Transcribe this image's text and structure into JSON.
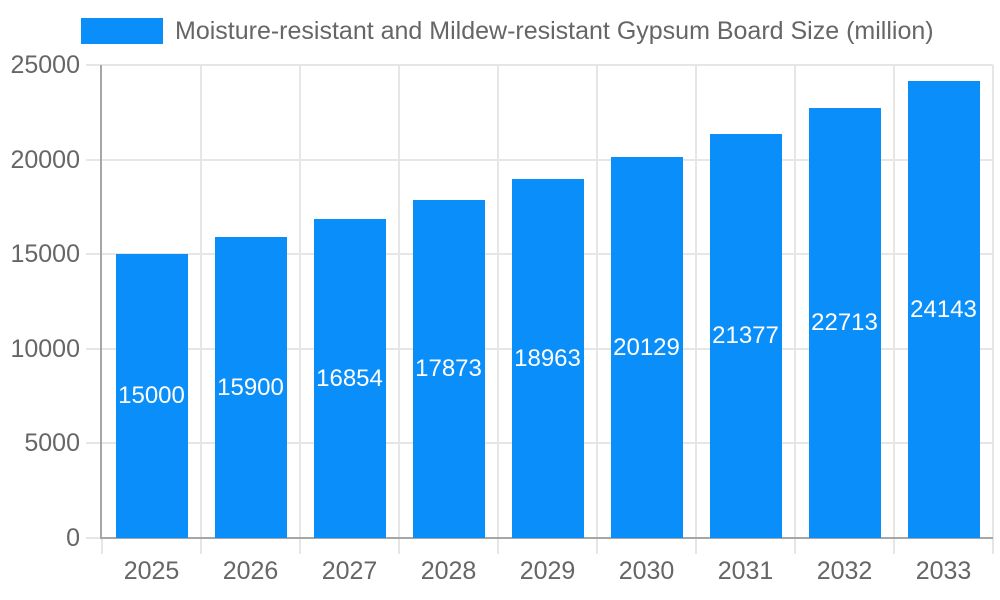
{
  "chart_data": {
    "type": "bar",
    "title": "Moisture-resistant and Mildew-resistant Gypsum Board Size (million)",
    "legend_entries": [
      "Moisture-resistant and Mildew-resistant Gypsum Board Size (million)"
    ],
    "legend_position": "top",
    "categories": [
      "2025",
      "2026",
      "2027",
      "2028",
      "2029",
      "2030",
      "2031",
      "2032",
      "2033"
    ],
    "values": [
      15000,
      15900,
      16854,
      17873,
      18963,
      20129,
      21377,
      22713,
      24143
    ],
    "bar_value_labels": [
      "15000",
      "15900",
      "16854",
      "17873",
      "18963",
      "20129",
      "21377",
      "22713",
      "24143"
    ],
    "xlabel": "",
    "ylabel": "",
    "ylim": [
      0,
      25000
    ],
    "yticks": [
      0,
      5000,
      10000,
      15000,
      20000,
      25000
    ],
    "grid": true
  },
  "colors": {
    "bar": "#0a8ef9",
    "bar_label": "#ffffff",
    "grid": "#e6e6e6",
    "axis": "#a6a6a6",
    "text": "#666666",
    "background": "#ffffff"
  }
}
